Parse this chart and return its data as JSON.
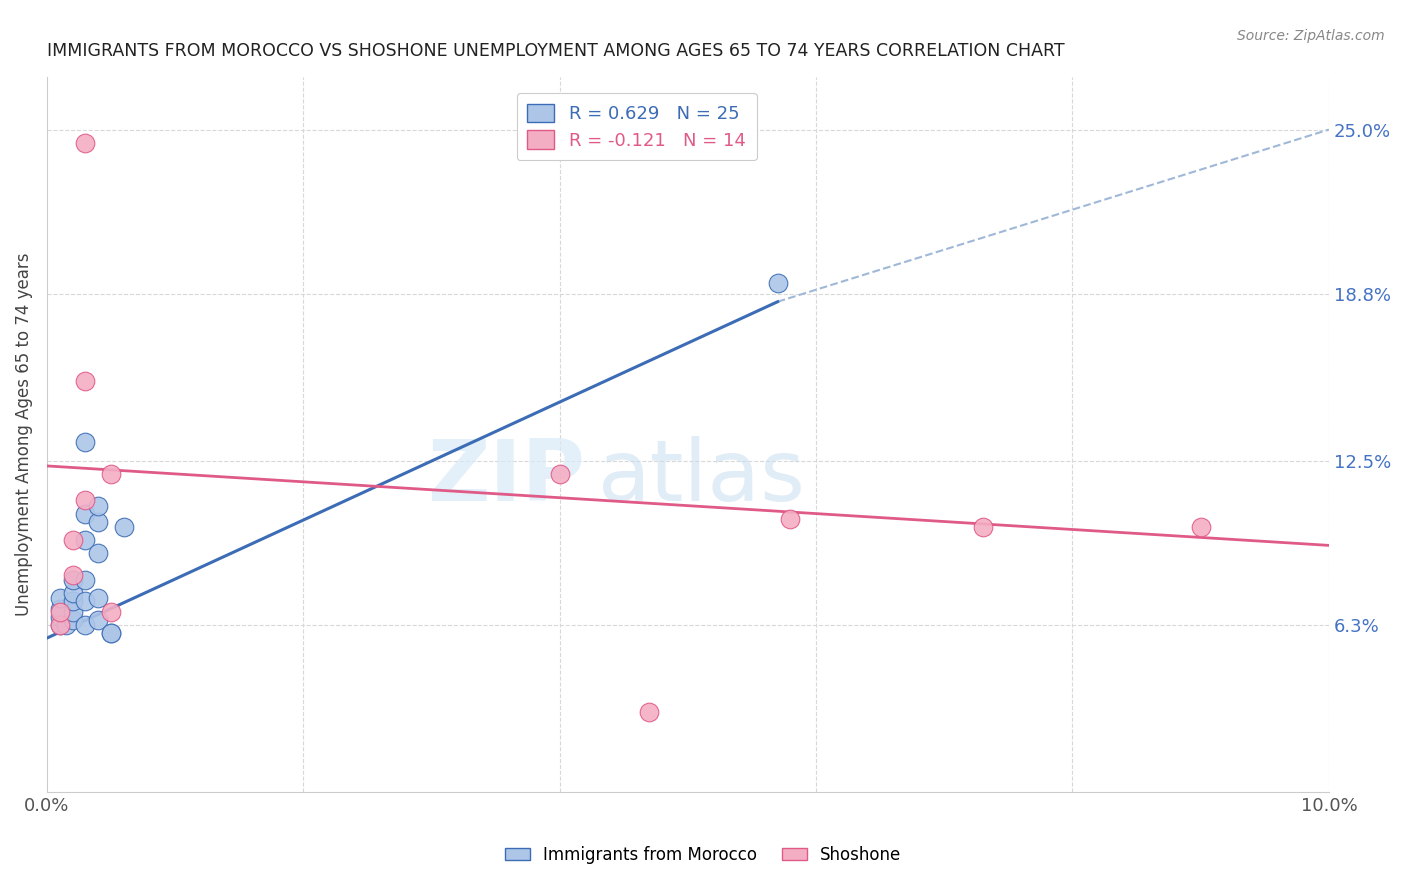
{
  "title": "IMMIGRANTS FROM MOROCCO VS SHOSHONE UNEMPLOYMENT AMONG AGES 65 TO 74 YEARS CORRELATION CHART",
  "source": "Source: ZipAtlas.com",
  "ylabel": "Unemployment Among Ages 65 to 74 years",
  "xlim": [
    0,
    0.1
  ],
  "ylim": [
    0.0,
    0.27
  ],
  "xticks": [
    0.0,
    0.02,
    0.04,
    0.06,
    0.08,
    0.1
  ],
  "right_yticks": [
    0.063,
    0.125,
    0.188,
    0.25
  ],
  "right_yticklabels": [
    "6.3%",
    "12.5%",
    "18.8%",
    "25.0%"
  ],
  "legend_entries": [
    {
      "label": "R = 0.629   N = 25"
    },
    {
      "label": "R = -0.121   N = 14"
    }
  ],
  "blue_scatter": [
    [
      0.001,
      0.063
    ],
    [
      0.001,
      0.066
    ],
    [
      0.001,
      0.069
    ],
    [
      0.001,
      0.073
    ],
    [
      0.0015,
      0.063
    ],
    [
      0.002,
      0.065
    ],
    [
      0.002,
      0.068
    ],
    [
      0.002,
      0.072
    ],
    [
      0.002,
      0.075
    ],
    [
      0.002,
      0.08
    ],
    [
      0.003,
      0.063
    ],
    [
      0.003,
      0.072
    ],
    [
      0.003,
      0.08
    ],
    [
      0.003,
      0.095
    ],
    [
      0.003,
      0.105
    ],
    [
      0.003,
      0.132
    ],
    [
      0.004,
      0.065
    ],
    [
      0.004,
      0.073
    ],
    [
      0.004,
      0.09
    ],
    [
      0.004,
      0.102
    ],
    [
      0.004,
      0.108
    ],
    [
      0.005,
      0.06
    ],
    [
      0.005,
      0.06
    ],
    [
      0.006,
      0.1
    ],
    [
      0.057,
      0.192
    ]
  ],
  "pink_scatter": [
    [
      0.001,
      0.063
    ],
    [
      0.001,
      0.068
    ],
    [
      0.002,
      0.082
    ],
    [
      0.002,
      0.095
    ],
    [
      0.003,
      0.11
    ],
    [
      0.003,
      0.155
    ],
    [
      0.003,
      0.245
    ],
    [
      0.005,
      0.068
    ],
    [
      0.005,
      0.12
    ],
    [
      0.04,
      0.12
    ],
    [
      0.058,
      0.103
    ],
    [
      0.073,
      0.1
    ],
    [
      0.09,
      0.1
    ],
    [
      0.047,
      0.03
    ]
  ],
  "blue_line_x": [
    0.0,
    0.057
  ],
  "blue_line_y": [
    0.058,
    0.185
  ],
  "dash_line_x": [
    0.057,
    0.1
  ],
  "dash_line_y": [
    0.185,
    0.25
  ],
  "pink_line_x": [
    0.0,
    0.1
  ],
  "pink_line_y": [
    0.123,
    0.093
  ],
  "blue_scatter_color": "#adc6e8",
  "pink_scatter_color": "#f4aec4",
  "blue_line_color": "#3b6cb5",
  "pink_line_color": "#e05a88",
  "dashed_line_color": "#a0b8d8",
  "watermark_zip": "ZIP",
  "watermark_atlas": "atlas",
  "dot_size": 180,
  "background_color": "#ffffff",
  "grid_color": "#d8d8d8"
}
